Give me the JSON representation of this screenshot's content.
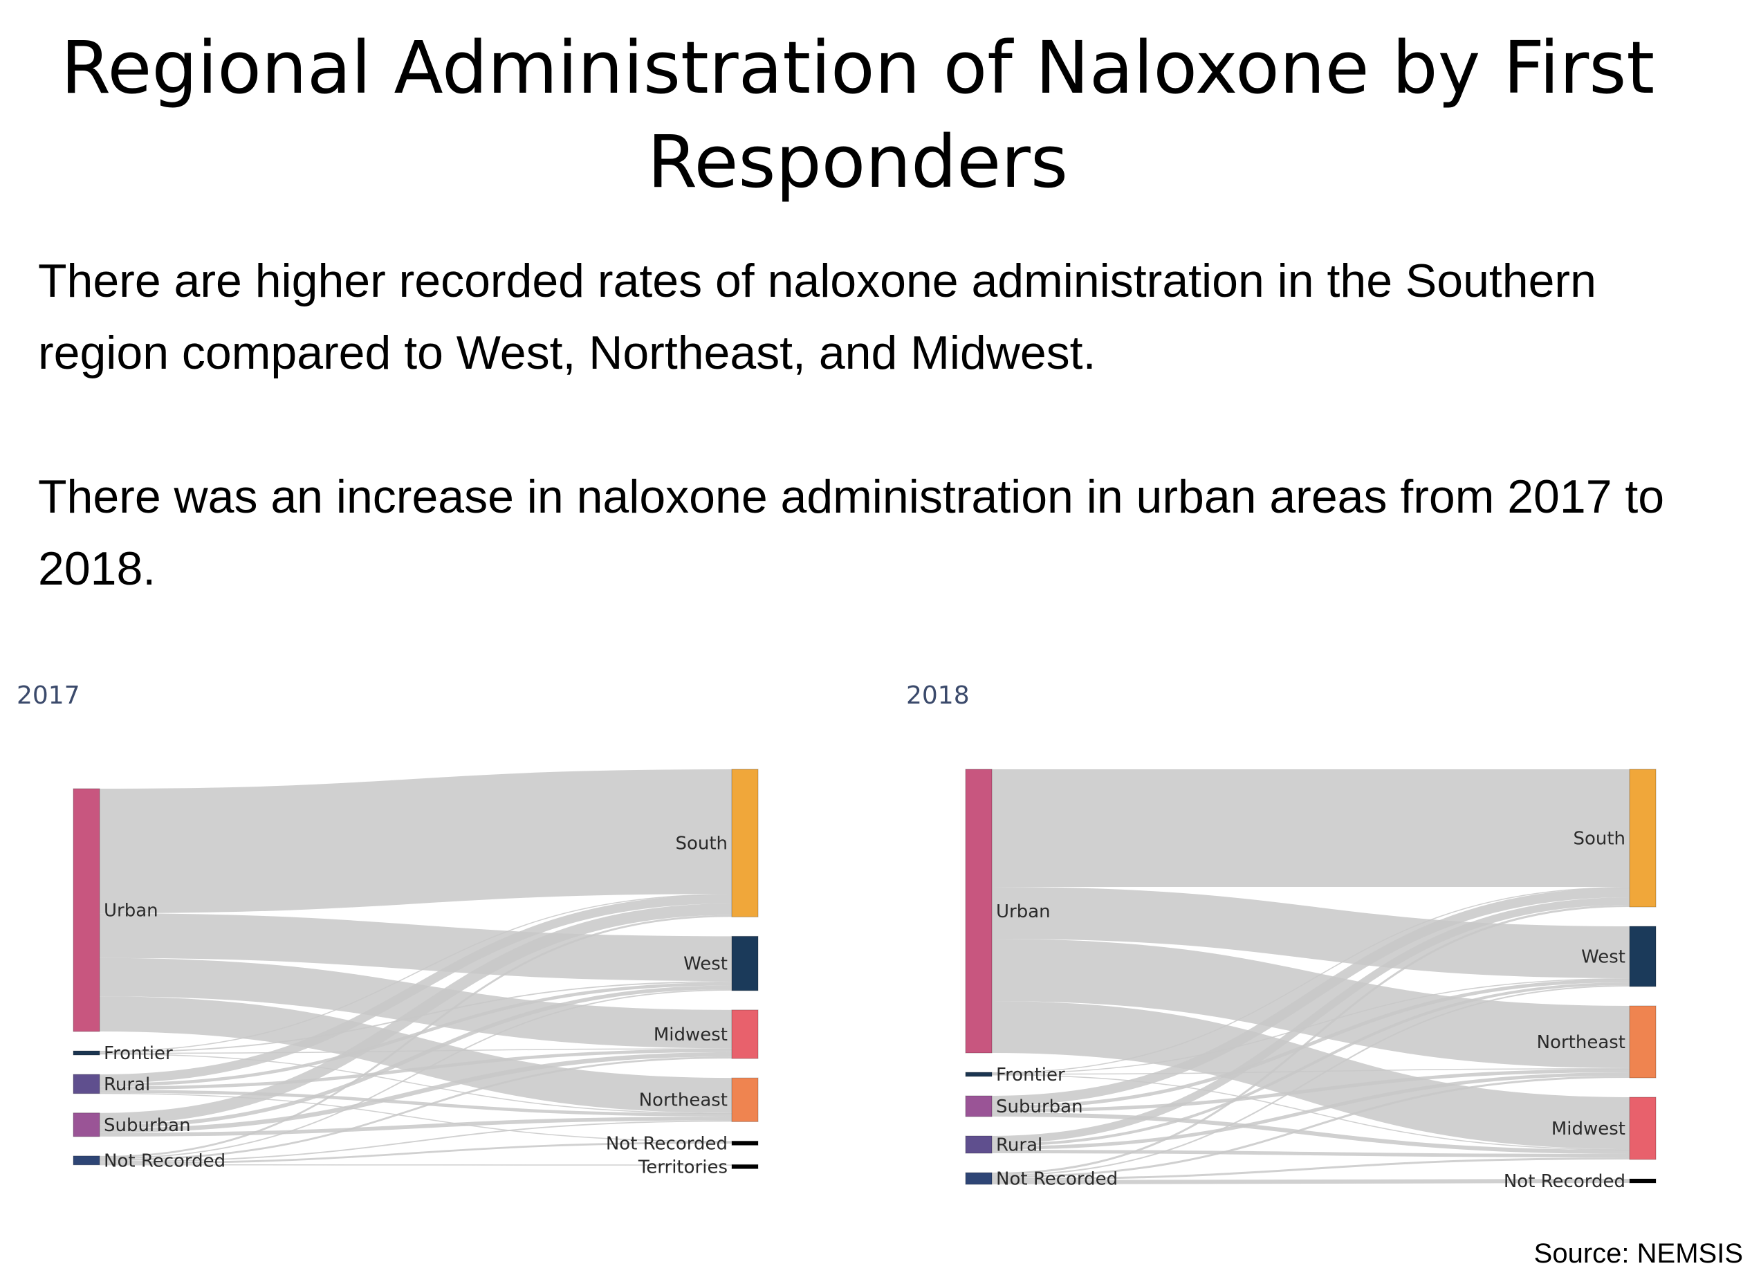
{
  "title": "Regional Administration of Naloxone by First Responders",
  "paragraphs": [
    "There are higher recorded rates of naloxone administration in the Southern region compared to West, Northeast, and Midwest.",
    "There was an increase in naloxone administration in urban areas from 2017 to 2018."
  ],
  "source": "Source: NEMSIS",
  "colors": {
    "link": "#c8c8c8",
    "Urban": "#c8567f",
    "Frontier": "#1b3550",
    "Rural": "#5f4f8e",
    "Suburban": "#9a5496",
    "Not Recorded (left)": "#2e4575",
    "South": "#f0a73a",
    "West": "#1b3a5a",
    "Midwest": "#e8616c",
    "Northeast": "#ef8450",
    "Not Recorded (right)": "#000000",
    "Territories": "#000000"
  },
  "chart_data": [
    {
      "type": "sankey",
      "title": "2017",
      "sources": [
        "Urban",
        "Frontier",
        "Rural",
        "Suburban",
        "Not Recorded"
      ],
      "targets": [
        "South",
        "West",
        "Midwest",
        "Northeast",
        "Not Recorded",
        "Territories"
      ],
      "links": [
        {
          "source": "Urban",
          "target": "South",
          "value": 195
        },
        {
          "source": "Urban",
          "target": "West",
          "value": 70
        },
        {
          "source": "Urban",
          "target": "Midwest",
          "value": 60
        },
        {
          "source": "Urban",
          "target": "Northeast",
          "value": 55
        },
        {
          "source": "Frontier",
          "target": "South",
          "value": 1
        },
        {
          "source": "Frontier",
          "target": "West",
          "value": 2
        },
        {
          "source": "Frontier",
          "target": "Midwest",
          "value": 1
        },
        {
          "source": "Frontier",
          "target": "Northeast",
          "value": 0.5
        },
        {
          "source": "Rural",
          "target": "South",
          "value": 14
        },
        {
          "source": "Rural",
          "target": "West",
          "value": 5
        },
        {
          "source": "Rural",
          "target": "Midwest",
          "value": 5
        },
        {
          "source": "Rural",
          "target": "Northeast",
          "value": 5
        },
        {
          "source": "Rural",
          "target": "Not Recorded",
          "value": 1
        },
        {
          "source": "Suburban",
          "target": "South",
          "value": 18
        },
        {
          "source": "Suburban",
          "target": "West",
          "value": 6
        },
        {
          "source": "Suburban",
          "target": "Midwest",
          "value": 7
        },
        {
          "source": "Suburban",
          "target": "Northeast",
          "value": 6
        },
        {
          "source": "Not Recorded",
          "target": "South",
          "value": 3
        },
        {
          "source": "Not Recorded",
          "target": "West",
          "value": 2
        },
        {
          "source": "Not Recorded",
          "target": "Midwest",
          "value": 3
        },
        {
          "source": "Not Recorded",
          "target": "Northeast",
          "value": 2
        },
        {
          "source": "Not Recorded",
          "target": "Not Recorded",
          "value": 3
        },
        {
          "source": "Not Recorded",
          "target": "Territories",
          "value": 1
        }
      ]
    },
    {
      "type": "sankey",
      "title": "2018",
      "sources": [
        "Urban",
        "Frontier",
        "Suburban",
        "Rural",
        "Not Recorded"
      ],
      "targets": [
        "South",
        "West",
        "Northeast",
        "Midwest",
        "Not Recorded"
      ],
      "links": [
        {
          "source": "Urban",
          "target": "South",
          "value": 170
        },
        {
          "source": "Urban",
          "target": "West",
          "value": 75
        },
        {
          "source": "Urban",
          "target": "Northeast",
          "value": 90
        },
        {
          "source": "Urban",
          "target": "Midwest",
          "value": 75
        },
        {
          "source": "Frontier",
          "target": "South",
          "value": 1
        },
        {
          "source": "Frontier",
          "target": "West",
          "value": 1
        },
        {
          "source": "Frontier",
          "target": "Northeast",
          "value": 1
        },
        {
          "source": "Frontier",
          "target": "Midwest",
          "value": 1
        },
        {
          "source": "Suburban",
          "target": "South",
          "value": 14
        },
        {
          "source": "Suburban",
          "target": "West",
          "value": 5
        },
        {
          "source": "Suburban",
          "target": "Northeast",
          "value": 5
        },
        {
          "source": "Suburban",
          "target": "Midwest",
          "value": 6
        },
        {
          "source": "Rural",
          "target": "South",
          "value": 11
        },
        {
          "source": "Rural",
          "target": "West",
          "value": 4
        },
        {
          "source": "Rural",
          "target": "Northeast",
          "value": 5
        },
        {
          "source": "Rural",
          "target": "Midwest",
          "value": 5
        },
        {
          "source": "Not Recorded",
          "target": "South",
          "value": 3
        },
        {
          "source": "Not Recorded",
          "target": "West",
          "value": 2
        },
        {
          "source": "Not Recorded",
          "target": "Northeast",
          "value": 3
        },
        {
          "source": "Not Recorded",
          "target": "Midwest",
          "value": 3
        },
        {
          "source": "Not Recorded",
          "target": "Not Recorded",
          "value": 6
        }
      ]
    }
  ]
}
